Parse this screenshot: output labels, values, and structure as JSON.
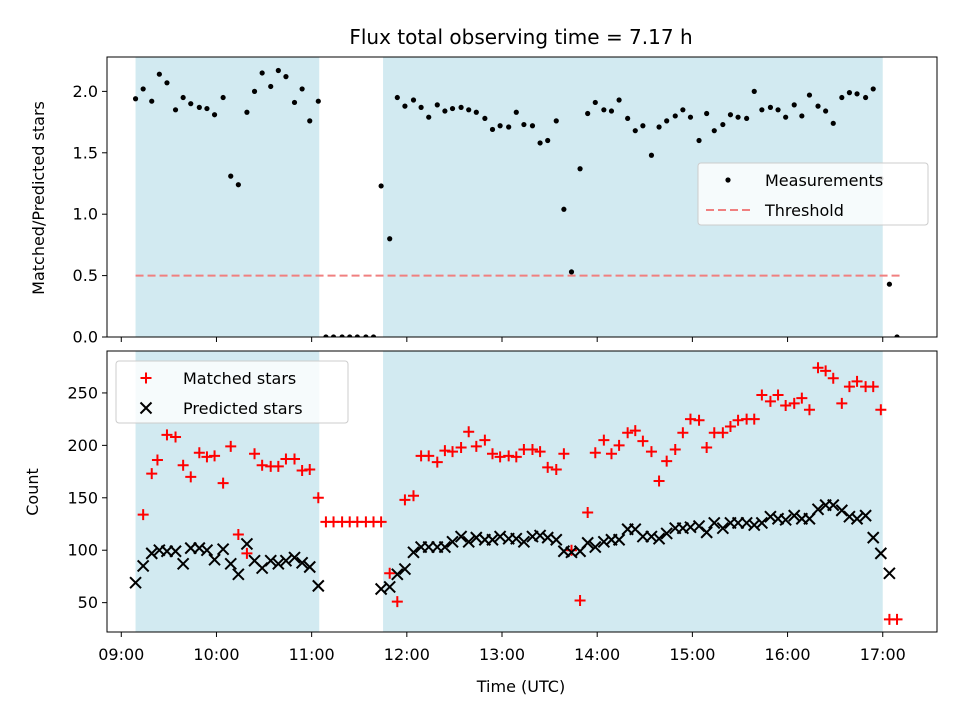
{
  "chart_data": {
    "title": "Flux total observing time = 7.17 h",
    "xlabel": "Time (UTC)",
    "x_ticks": [
      "09:00",
      "10:00",
      "11:00",
      "12:00",
      "13:00",
      "14:00",
      "15:00",
      "16:00",
      "17:00"
    ],
    "x_tick_hours": [
      9,
      10,
      11,
      12,
      13,
      14,
      15,
      16,
      17
    ],
    "xlim_hours": [
      8.85,
      17.57
    ],
    "shaded_intervals_hours": [
      [
        9.15,
        11.08
      ],
      [
        11.75,
        17.0
      ]
    ],
    "shade_color": "#add8e6",
    "panels": [
      {
        "type": "scatter",
        "ylabel": "Matched/Predicted stars",
        "ylim": [
          0,
          2.28
        ],
        "y_ticks": [
          0.0,
          0.5,
          1.0,
          1.5,
          2.0
        ],
        "y_tick_labels": [
          "0.0",
          "0.5",
          "1.0",
          "1.5",
          "2.0"
        ],
        "legend_position": "center-right",
        "series": [
          {
            "name": "Measurements",
            "marker": "dot",
            "color": "#000000",
            "x": [
              9.15,
              9.23,
              9.32,
              9.4,
              9.48,
              9.57,
              9.65,
              9.73,
              9.82,
              9.9,
              9.98,
              10.07,
              10.15,
              10.23,
              10.32,
              10.4,
              10.48,
              10.57,
              10.65,
              10.73,
              10.82,
              10.9,
              10.98,
              11.07,
              11.15,
              11.23,
              11.32,
              11.4,
              11.48,
              11.57,
              11.65,
              11.73,
              11.82,
              11.9,
              11.98,
              12.07,
              12.15,
              12.23,
              12.32,
              12.4,
              12.48,
              12.57,
              12.65,
              12.73,
              12.82,
              12.9,
              12.98,
              13.07,
              13.15,
              13.23,
              13.32,
              13.4,
              13.48,
              13.57,
              13.65,
              13.73,
              13.82,
              13.9,
              13.98,
              14.07,
              14.15,
              14.23,
              14.32,
              14.4,
              14.48,
              14.57,
              14.65,
              14.73,
              14.82,
              14.9,
              14.98,
              15.07,
              15.15,
              15.23,
              15.32,
              15.4,
              15.48,
              15.57,
              15.65,
              15.73,
              15.82,
              15.9,
              15.98,
              16.07,
              16.15,
              16.23,
              16.32,
              16.4,
              16.48,
              16.57,
              16.65,
              16.73,
              16.82,
              16.9,
              16.98,
              17.07,
              17.15
            ],
            "y": [
              1.94,
              2.02,
              1.92,
              2.14,
              2.07,
              1.85,
              1.95,
              1.9,
              1.87,
              1.86,
              1.81,
              1.95,
              1.31,
              1.24,
              1.83,
              2.0,
              2.15,
              2.04,
              2.17,
              2.12,
              1.91,
              2.02,
              1.76,
              1.92,
              0.0,
              0.0,
              0.0,
              0.0,
              0.0,
              0.0,
              0.0,
              1.23,
              0.8,
              1.95,
              1.88,
              1.93,
              1.87,
              1.79,
              1.89,
              1.84,
              1.86,
              1.87,
              1.85,
              1.83,
              1.78,
              1.69,
              1.72,
              1.71,
              1.83,
              1.73,
              1.72,
              1.58,
              1.6,
              1.76,
              1.04,
              0.53,
              1.37,
              1.82,
              1.91,
              1.85,
              1.84,
              1.93,
              1.78,
              1.68,
              1.72,
              1.48,
              1.71,
              1.76,
              1.8,
              1.85,
              1.79,
              1.6,
              1.82,
              1.68,
              1.73,
              1.81,
              1.79,
              1.78,
              2.0,
              1.85,
              1.87,
              1.85,
              1.79,
              1.89,
              1.8,
              1.97,
              1.88,
              1.84,
              1.74,
              1.95,
              1.99,
              1.98,
              1.95,
              2.02,
              1.29,
              0.43,
              0.0
            ]
          },
          {
            "name": "Threshold",
            "marker": "dashed-line",
            "color": "#f08080",
            "x": [
              9.15,
              17.2
            ],
            "y": [
              0.5,
              0.5
            ]
          }
        ]
      },
      {
        "type": "scatter",
        "ylabel": "Count",
        "ylim": [
          22,
          290
        ],
        "y_ticks": [
          50,
          100,
          150,
          200,
          250
        ],
        "y_tick_labels": [
          "50",
          "100",
          "150",
          "200",
          "250"
        ],
        "legend_position": "top-left",
        "series": [
          {
            "name": "Matched stars",
            "marker": "plus",
            "color": "#ff0000",
            "x": [
              9.23,
              9.32,
              9.38,
              9.48,
              9.57,
              9.65,
              9.73,
              9.82,
              9.9,
              9.98,
              10.07,
              10.15,
              10.23,
              10.32,
              10.4,
              10.48,
              10.57,
              10.65,
              10.73,
              10.82,
              10.9,
              10.98,
              11.07,
              11.15,
              11.23,
              11.32,
              11.4,
              11.48,
              11.57,
              11.65,
              11.73,
              11.82,
              11.9,
              11.98,
              12.07,
              12.15,
              12.23,
              12.32,
              12.4,
              12.48,
              12.57,
              12.65,
              12.73,
              12.82,
              12.9,
              12.98,
              13.07,
              13.15,
              13.23,
              13.32,
              13.4,
              13.48,
              13.57,
              13.65,
              13.73,
              13.82,
              13.9,
              13.98,
              14.07,
              14.15,
              14.23,
              14.32,
              14.4,
              14.48,
              14.57,
              14.65,
              14.73,
              14.82,
              14.9,
              14.98,
              15.07,
              15.15,
              15.23,
              15.32,
              15.4,
              15.48,
              15.57,
              15.65,
              15.73,
              15.82,
              15.9,
              15.98,
              16.07,
              16.15,
              16.23,
              16.32,
              16.4,
              16.48,
              16.57,
              16.65,
              16.73,
              16.82,
              16.9,
              16.98,
              17.07,
              17.15
            ],
            "y": [
              134,
              173,
              186,
              210,
              208,
              181,
              170,
              193,
              189,
              190,
              164,
              199,
              115,
              97,
              192,
              181,
              180,
              180,
              187,
              187,
              176,
              177,
              150,
              127,
              127,
              127,
              127,
              127,
              127,
              127,
              127,
              78,
              51,
              148,
              152,
              190,
              190,
              184,
              195,
              194,
              198,
              213,
              199,
              205,
              192,
              189,
              190,
              189,
              196,
              196,
              194,
              179,
              177,
              192,
              100,
              52,
              136,
              193,
              205,
              192,
              200,
              212,
              214,
              204,
              194,
              166,
              185,
              196,
              212,
              225,
              224,
              198,
              212,
              212,
              218,
              224,
              225,
              225,
              248,
              242,
              248,
              238,
              240,
              245,
              234,
              274,
              271,
              264,
              240,
              256,
              261,
              256,
              256,
              234,
              34,
              34
            ]
          },
          {
            "name": "Predicted stars",
            "marker": "x",
            "color": "#000000",
            "x": [
              9.15,
              9.23,
              9.32,
              9.4,
              9.48,
              9.57,
              9.65,
              9.73,
              9.82,
              9.9,
              9.98,
              10.07,
              10.15,
              10.23,
              10.32,
              10.4,
              10.48,
              10.57,
              10.65,
              10.73,
              10.82,
              10.9,
              10.98,
              11.07,
              11.73,
              11.82,
              11.9,
              11.98,
              12.07,
              12.15,
              12.23,
              12.32,
              12.4,
              12.48,
              12.57,
              12.65,
              12.73,
              12.82,
              12.9,
              12.98,
              13.07,
              13.15,
              13.23,
              13.32,
              13.4,
              13.48,
              13.57,
              13.65,
              13.73,
              13.82,
              13.9,
              13.98,
              14.07,
              14.15,
              14.23,
              14.32,
              14.4,
              14.48,
              14.57,
              14.65,
              14.73,
              14.82,
              14.9,
              14.98,
              15.07,
              15.15,
              15.23,
              15.32,
              15.4,
              15.48,
              15.57,
              15.65,
              15.73,
              15.82,
              15.9,
              15.98,
              16.07,
              16.15,
              16.23,
              16.32,
              16.4,
              16.48,
              16.57,
              16.65,
              16.73,
              16.82,
              16.9,
              16.98,
              17.07
            ],
            "y": [
              69,
              85,
              97,
              100,
              99,
              99,
              87,
              102,
              102,
              100,
              91,
              101,
              87,
              77,
              106,
              90,
              83,
              90,
              87,
              90,
              93,
              88,
              84,
              66,
              63,
              65,
              77,
              82,
              98,
              103,
              103,
              103,
              103,
              108,
              113,
              108,
              112,
              110,
              110,
              113,
              111,
              111,
              108,
              113,
              114,
              112,
              110,
              99,
              98,
              99,
              107,
              103,
              108,
              110,
              110,
              120,
              120,
              113,
              113,
              111,
              116,
              121,
              121,
              122,
              123,
              117,
              126,
              121,
              126,
              126,
              126,
              124,
              126,
              132,
              130,
              129,
              133,
              130,
              130,
              139,
              143,
              143,
              138,
              132,
              130,
              133,
              112,
              97,
              78
            ]
          }
        ]
      }
    ]
  }
}
